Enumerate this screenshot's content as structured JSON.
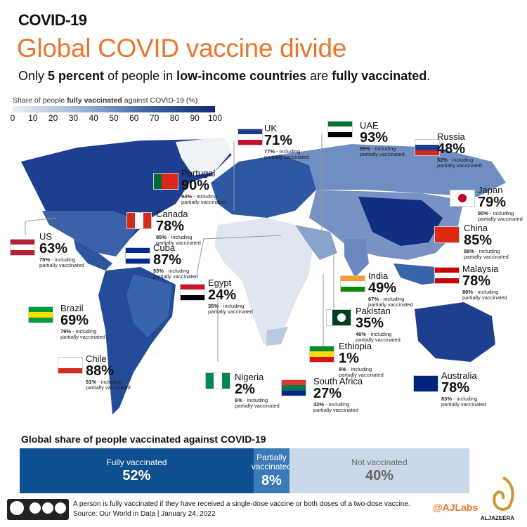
{
  "header": {
    "kicker": "COVID-19",
    "title": "Global COVID vaccine divide",
    "subtitle": [
      "Only ",
      "5 percent",
      " of people in ",
      "low-income countries",
      " are ",
      "fully vaccinated",
      "."
    ]
  },
  "legend": {
    "title": [
      "Share of people ",
      "fully vaccinated",
      " against COVID-19 (%)"
    ],
    "ticks": [
      "0",
      "10",
      "20",
      "30",
      "40",
      "50",
      "60",
      "70",
      "80",
      "90",
      "100"
    ]
  },
  "note_text": "- including partially vaccinated",
  "countries": [
    {
      "name": "UK",
      "fully": "71%",
      "partial": "77%"
    },
    {
      "name": "UAE",
      "fully": "93%",
      "partial": "99%"
    },
    {
      "name": "Russia",
      "fully": "48%",
      "partial": "52%"
    },
    {
      "name": "Portugal",
      "fully": "90%",
      "partial": "94%"
    },
    {
      "name": "Japan",
      "fully": "79%",
      "partial": "80%"
    },
    {
      "name": "Canada",
      "fully": "78%",
      "partial": "85%"
    },
    {
      "name": "US",
      "fully": "63%",
      "partial": "75%"
    },
    {
      "name": "China",
      "fully": "85%",
      "partial": "88%"
    },
    {
      "name": "Cuba",
      "fully": "87%",
      "partial": "93%"
    },
    {
      "name": "Malaysia",
      "fully": "78%",
      "partial": "80%"
    },
    {
      "name": "Egypt",
      "fully": "24%",
      "partial": "35%"
    },
    {
      "name": "India",
      "fully": "49%",
      "partial": "67%"
    },
    {
      "name": "Brazil",
      "fully": "69%",
      "partial": "79%"
    },
    {
      "name": "Pakistan",
      "fully": "35%",
      "partial": "46%"
    },
    {
      "name": "Ethiopia",
      "fully": "1%",
      "partial": "8%"
    },
    {
      "name": "Chile",
      "fully": "88%",
      "partial": "91%"
    },
    {
      "name": "Nigeria",
      "fully": "2%",
      "partial": "6%"
    },
    {
      "name": "South Africa",
      "fully": "27%",
      "partial": "32%"
    },
    {
      "name": "Australia",
      "fully": "78%",
      "partial": "83%"
    }
  ],
  "global_share": {
    "title": "Global share of people vaccinated against COVID-19",
    "segments": [
      {
        "name": "Fully vaccinated",
        "value": 52,
        "label": "52%",
        "color": "#0d4f8f"
      },
      {
        "name": "Partially vaccinated",
        "value": 8,
        "label": "8%",
        "color": "#3a7ab8"
      },
      {
        "name": "Not vaccinated",
        "value": 40,
        "label": "40%",
        "color": "#c9d9ea"
      }
    ]
  },
  "footer": {
    "definition": "A person is fully vaccinated if they have received a single-dose vaccine or both doses of a two-dose vaccine.",
    "source": "Source: Our World in Data | January 24, 2022",
    "handle": "@AJLabs",
    "brand": "ALJAZEERA"
  }
}
